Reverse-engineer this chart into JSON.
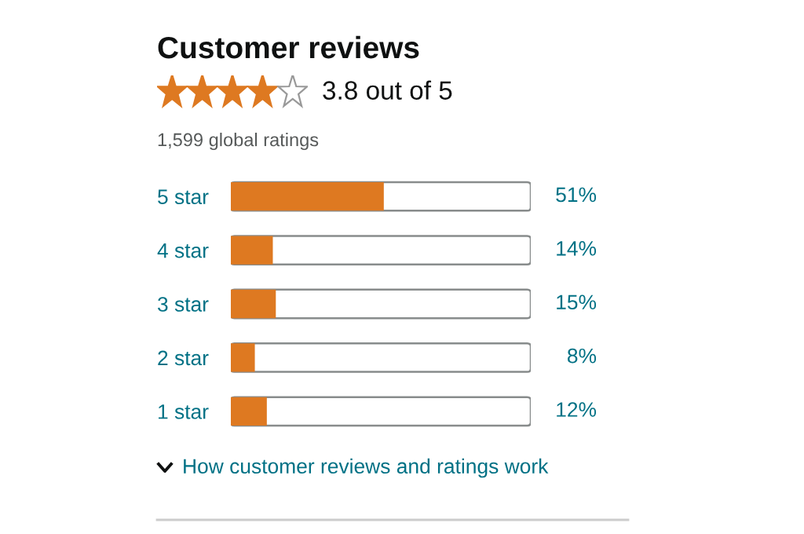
{
  "chart_data": {
    "type": "bar",
    "orientation": "horizontal",
    "title": "Customer reviews",
    "subtitle": "3.8 out of 5",
    "annotations": [
      "1,599 global ratings",
      "How customer reviews and ratings work"
    ],
    "categories": [
      "5 star",
      "4 star",
      "3 star",
      "2 star",
      "1 star"
    ],
    "values": [
      51,
      14,
      15,
      8,
      12
    ],
    "value_labels": [
      "51%",
      "14%",
      "15%",
      "8%",
      "12%"
    ],
    "color": "#de7921",
    "xlim": [
      0,
      100
    ],
    "tick_labels": "y",
    "grid": false,
    "legend": false
  }
}
